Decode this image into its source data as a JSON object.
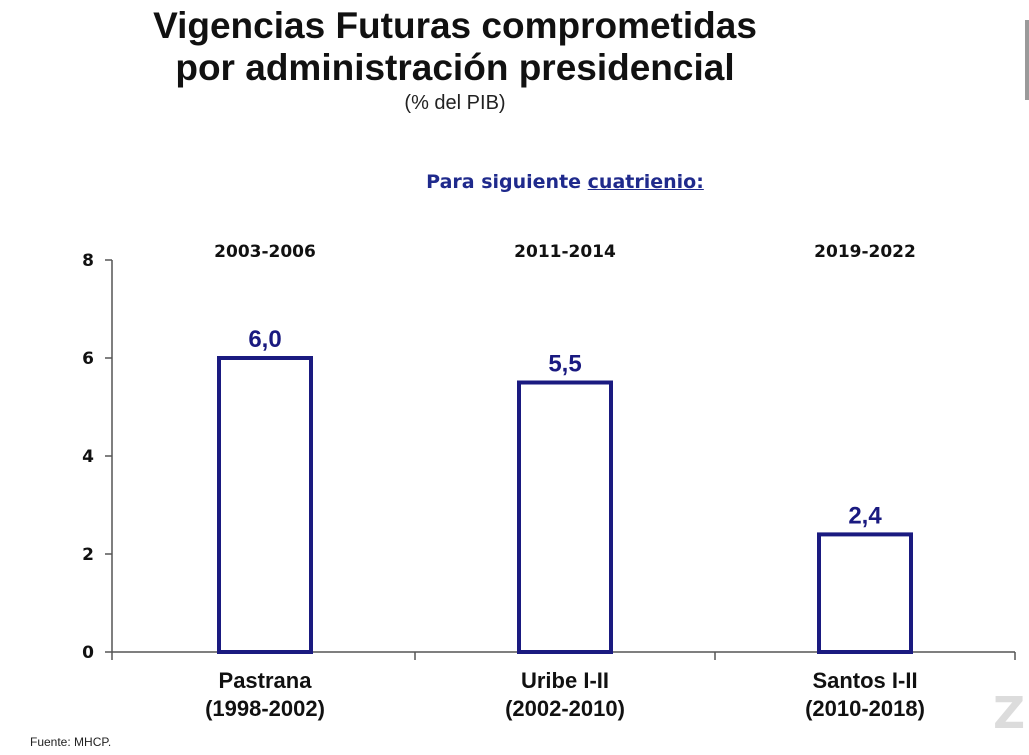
{
  "title_line1": "Vigencias Futuras comprometidas",
  "title_line2": "por administración presidencial",
  "subtitle": "(% del PIB)",
  "section_heading_prefix": "Para siguiente ",
  "section_heading_underlined": "cuatrienio:",
  "source": "Fuente: MHCP.",
  "corner_glyph": "Z",
  "colors": {
    "bar": "#1a1a80",
    "heading": "#1f2a8c",
    "axis": "#555555"
  },
  "chart_data": {
    "type": "bar",
    "categories": [
      [
        "Pastrana",
        "(1998-2002)"
      ],
      [
        "Uribe I-II",
        "(2002-2010)"
      ],
      [
        "Santos I-II",
        "(2010-2018)"
      ]
    ],
    "period_labels": [
      "2003-2006",
      "2011-2014",
      "2019-2022"
    ],
    "values": [
      6.0,
      5.5,
      2.4
    ],
    "data_labels": [
      "6,0",
      "5,5",
      "2,4"
    ],
    "ylim": [
      0,
      8
    ],
    "yticks": [
      0,
      2,
      4,
      6,
      8
    ],
    "grid": false,
    "legend": "none"
  }
}
